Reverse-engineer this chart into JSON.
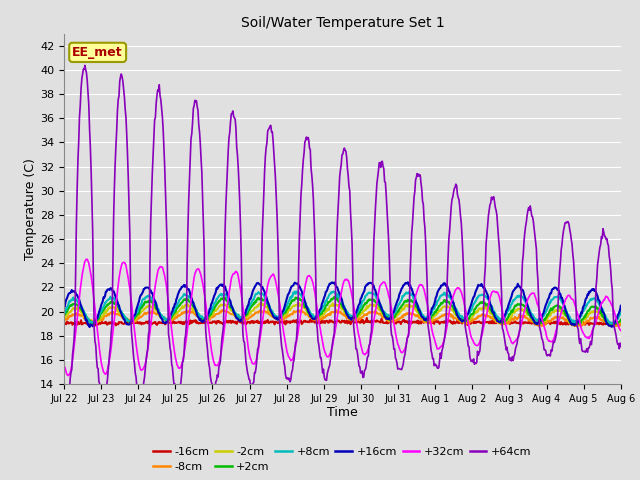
{
  "title": "Soil/Water Temperature Set 1",
  "xlabel": "Time",
  "ylabel": "Temperature (C)",
  "ylim": [
    14,
    43
  ],
  "background_color": "#e0e0e0",
  "plot_bg_color": "#e0e0e0",
  "grid_color": "#ffffff",
  "series": [
    {
      "label": "-16cm",
      "color": "#cc0000",
      "lw": 1.5
    },
    {
      "label": "-8cm",
      "color": "#ff8800",
      "lw": 1.5
    },
    {
      "label": "-2cm",
      "color": "#cccc00",
      "lw": 1.5
    },
    {
      "label": "+2cm",
      "color": "#00bb00",
      "lw": 1.5
    },
    {
      "label": "+8cm",
      "color": "#00bbbb",
      "lw": 1.5
    },
    {
      "label": "+16cm",
      "color": "#0000bb",
      "lw": 1.5
    },
    {
      "label": "+32cm",
      "color": "#ff00ff",
      "lw": 1.2
    },
    {
      "label": "+64cm",
      "color": "#8800bb",
      "lw": 1.2
    }
  ],
  "annotation_text": "EE_met",
  "annotation_color": "#aa0000",
  "annotation_bg": "#ffff99",
  "annotation_border": "#999900",
  "tick_labels": [
    "Jul 22",
    "Jul 23",
    "Jul 24",
    "Jul 25",
    "Jul 26",
    "Jul 27",
    "Jul 28",
    "Jul 29",
    "Jul 30",
    "Jul 31",
    "Aug 1",
    "Aug 2",
    "Aug 3",
    "Aug 4",
    "Aug 5",
    "Aug 6"
  ],
  "n_days": 15,
  "pts_per_day": 48
}
